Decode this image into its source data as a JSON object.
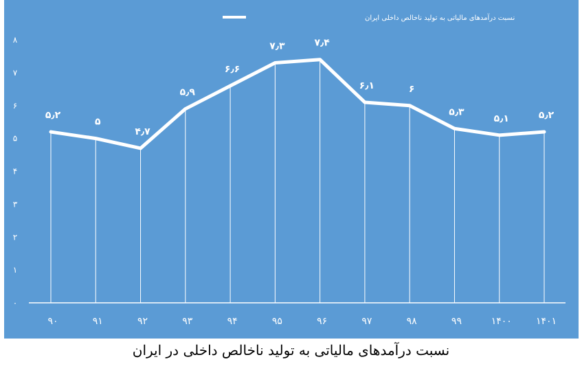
{
  "caption": "نسبت درآمدهای مالیاتی به تولید ناخالص داخلی در ایران",
  "colors": {
    "panel_background": "#5b9bd5",
    "series_line": "#ffffff",
    "drop_lines": "#ffffff",
    "caption_text": "#000000"
  },
  "chart_data": {
    "type": "line",
    "legend": {
      "position": "top-center",
      "entries": [
        "نسبت درآمدهای مالیاتی به تولید ناخالص داخلی ایران"
      ]
    },
    "categories": [
      "۹۰",
      "۹۱",
      "۹۲",
      "۹۳",
      "۹۴",
      "۹۵",
      "۹۶",
      "۹۷",
      "۹۸",
      "۹۹",
      "۱۴۰۰",
      "۱۴۰۱"
    ],
    "series": [
      {
        "name": "نسبت درآمدهای مالیاتی به تولید ناخالص داخلی ایران",
        "values": [
          5.2,
          5,
          4.7,
          5.9,
          6.6,
          7.3,
          7.4,
          6.1,
          6,
          5.3,
          5.1,
          5.2
        ],
        "value_labels": [
          "۵٫۲",
          "۵",
          "۴٫۷",
          "۵٫۹",
          "۶٫۶",
          "۷٫۳",
          "۷٫۴",
          "۶٫۱",
          "۶",
          "۵٫۳",
          "۵٫۱",
          "۵٫۲"
        ]
      }
    ],
    "y_ticks": [
      0,
      1,
      2,
      3,
      4,
      5,
      6,
      7,
      8
    ],
    "y_tick_labels": [
      "۰",
      "۱",
      "۲",
      "۳",
      "۴",
      "۵",
      "۶",
      "۷",
      "۸"
    ],
    "ylim": [
      0,
      8
    ],
    "drop_lines": true,
    "grid": false
  }
}
